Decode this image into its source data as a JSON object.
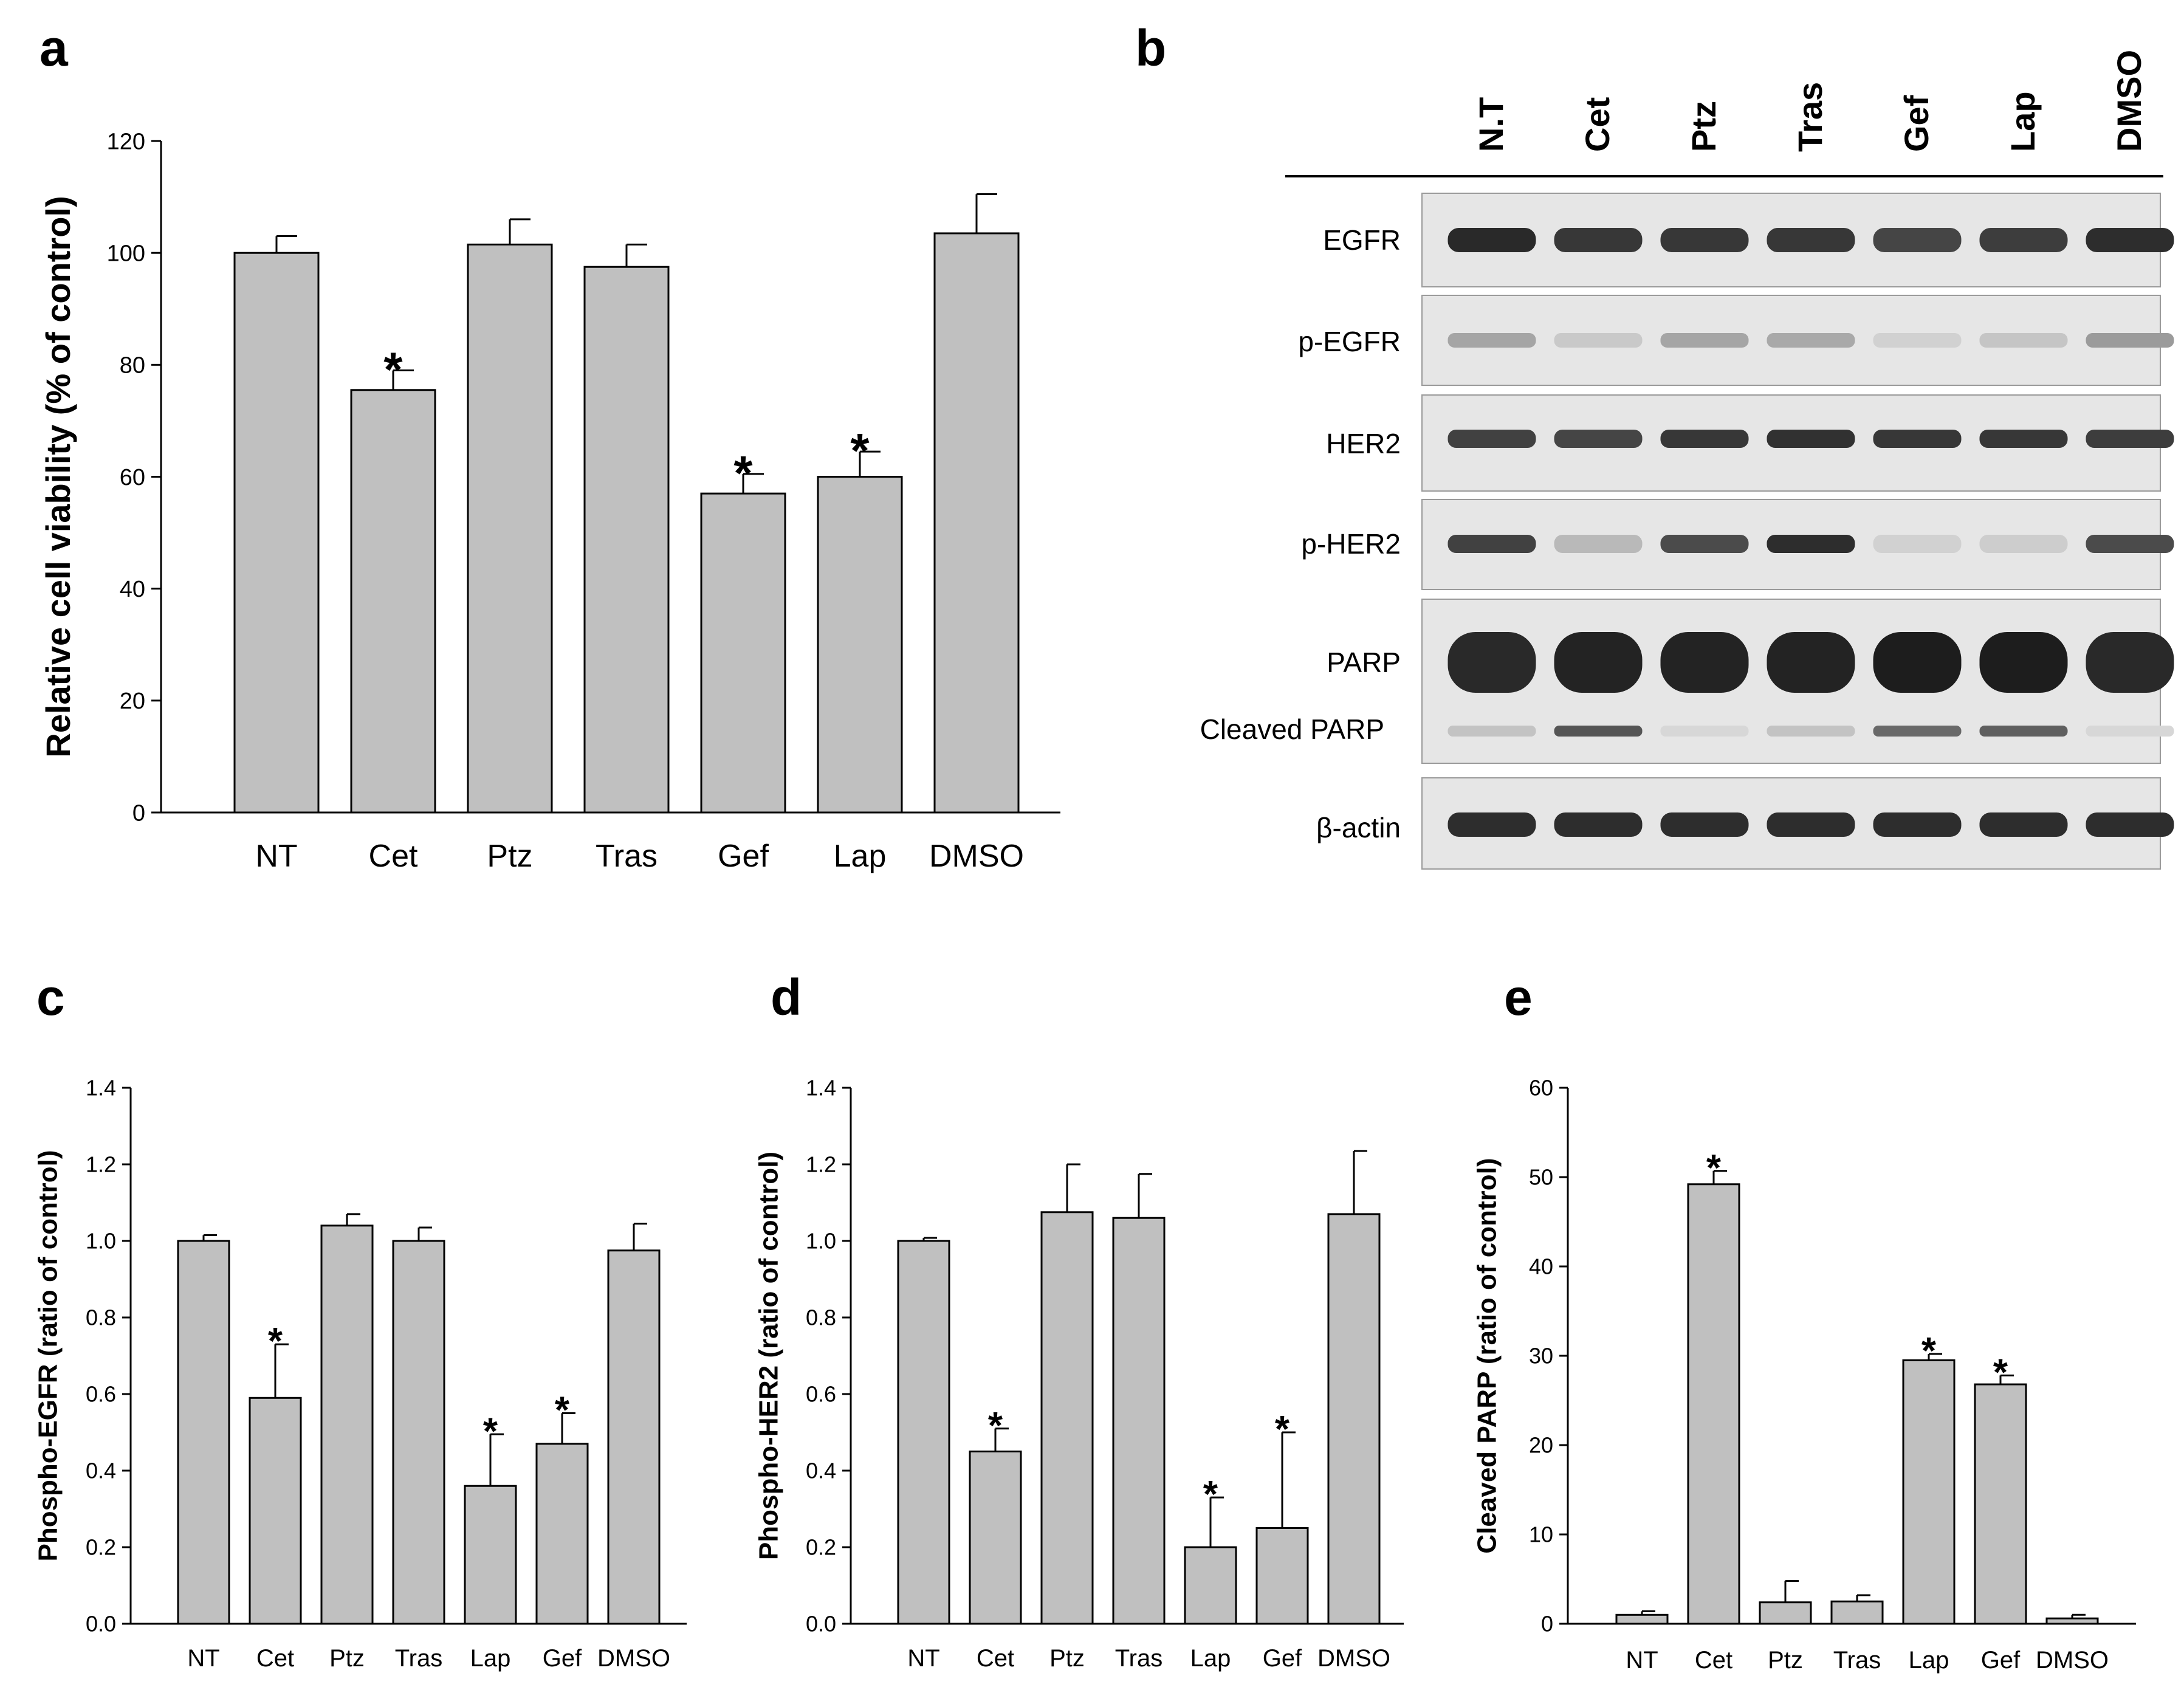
{
  "panels": {
    "a": "a",
    "b": "b",
    "c": "c",
    "d": "d",
    "e": "e"
  },
  "chart_data": [
    {
      "panel": "a",
      "type": "bar",
      "ylabel": "Relative cell viability (% of control)",
      "ylim": [
        0,
        120
      ],
      "yticks": [
        0,
        20,
        40,
        60,
        80,
        100,
        120
      ],
      "categories": [
        "NT",
        "Cet",
        "Ptz",
        "Tras",
        "Gef",
        "Lap",
        "DMSO"
      ],
      "values": [
        100,
        75.5,
        101.5,
        97.5,
        57,
        60,
        103.5
      ],
      "errors": [
        3,
        3.5,
        4.5,
        4,
        3.5,
        4.5,
        7
      ],
      "significant": [
        false,
        true,
        false,
        false,
        true,
        true,
        false
      ],
      "marker": "*",
      "bar_color": "#c0c0c0"
    },
    {
      "panel": "c",
      "type": "bar",
      "ylabel": "Phospho-EGFR (ratio of control)",
      "ylim": [
        0,
        1.4
      ],
      "yticks": [
        "0.0",
        "0.2",
        "0.4",
        "0.6",
        "0.8",
        "1.0",
        "1.2",
        "1.4"
      ],
      "categories": [
        "NT",
        "Cet",
        "Ptz",
        "Tras",
        "Lap",
        "Gef",
        "DMSO"
      ],
      "values": [
        1.0,
        0.59,
        1.04,
        1.0,
        0.36,
        0.47,
        0.975
      ],
      "errors": [
        0.015,
        0.14,
        0.03,
        0.035,
        0.135,
        0.08,
        0.07
      ],
      "significant": [
        false,
        true,
        false,
        false,
        true,
        true,
        false
      ],
      "marker": "*",
      "bar_color": "#c0c0c0"
    },
    {
      "panel": "d",
      "type": "bar",
      "ylabel": "Phospho-HER2 (ratio of control)",
      "ylim": [
        0,
        1.4
      ],
      "yticks": [
        "0.0",
        "0.2",
        "0.4",
        "0.6",
        "0.8",
        "1.0",
        "1.2",
        "1.4"
      ],
      "categories": [
        "NT",
        "Cet",
        "Ptz",
        "Tras",
        "Lap",
        "Gef",
        "DMSO"
      ],
      "values": [
        1.0,
        0.45,
        1.075,
        1.06,
        0.2,
        0.25,
        1.07
      ],
      "errors": [
        0.008,
        0.06,
        0.125,
        0.115,
        0.13,
        0.25,
        0.165
      ],
      "significant": [
        false,
        true,
        false,
        false,
        true,
        true,
        false
      ],
      "marker": "*",
      "bar_color": "#c0c0c0"
    },
    {
      "panel": "e",
      "type": "bar",
      "ylabel": "Cleaved PARP (ratio of control)",
      "ylim": [
        0,
        60
      ],
      "yticks": [
        "0",
        "10",
        "20",
        "30",
        "40",
        "50",
        "60"
      ],
      "categories": [
        "NT",
        "Cet",
        "Ptz",
        "Tras",
        "Lap",
        "Gef",
        "DMSO"
      ],
      "values": [
        1.0,
        49.2,
        2.4,
        2.5,
        29.5,
        26.8,
        0.6
      ],
      "errors": [
        0.4,
        1.5,
        2.4,
        0.7,
        0.7,
        1.0,
        0.4
      ],
      "significant": [
        false,
        true,
        false,
        false,
        true,
        true,
        false
      ],
      "marker": "*",
      "bar_color": "#c0c0c0"
    }
  ],
  "blot": {
    "lanes": [
      "N.T",
      "Cet",
      "Ptz",
      "Tras",
      "Gef",
      "Lap",
      "DMSO"
    ],
    "rows": [
      {
        "label": "EGFR",
        "intensities": [
          0.92,
          0.85,
          0.85,
          0.85,
          0.78,
          0.82,
          0.9
        ]
      },
      {
        "label": "p-EGFR",
        "intensities": [
          0.3,
          0.12,
          0.3,
          0.28,
          0.08,
          0.14,
          0.35
        ]
      },
      {
        "label": "HER2",
        "intensities": [
          0.8,
          0.78,
          0.85,
          0.88,
          0.85,
          0.85,
          0.82
        ]
      },
      {
        "label": "p-HER2",
        "intensities": [
          0.8,
          0.2,
          0.75,
          0.9,
          0.08,
          0.1,
          0.75
        ]
      },
      {
        "label": "PARP",
        "intensities": [
          0.92,
          0.95,
          0.95,
          0.95,
          0.98,
          0.98,
          0.92
        ]
      },
      {
        "label": "Cleaved PARP",
        "intensities": [
          0.15,
          0.7,
          0.05,
          0.15,
          0.6,
          0.65,
          0.05
        ]
      },
      {
        "label": "β-actin",
        "intensities": [
          0.9,
          0.9,
          0.9,
          0.9,
          0.9,
          0.9,
          0.9
        ]
      }
    ]
  }
}
